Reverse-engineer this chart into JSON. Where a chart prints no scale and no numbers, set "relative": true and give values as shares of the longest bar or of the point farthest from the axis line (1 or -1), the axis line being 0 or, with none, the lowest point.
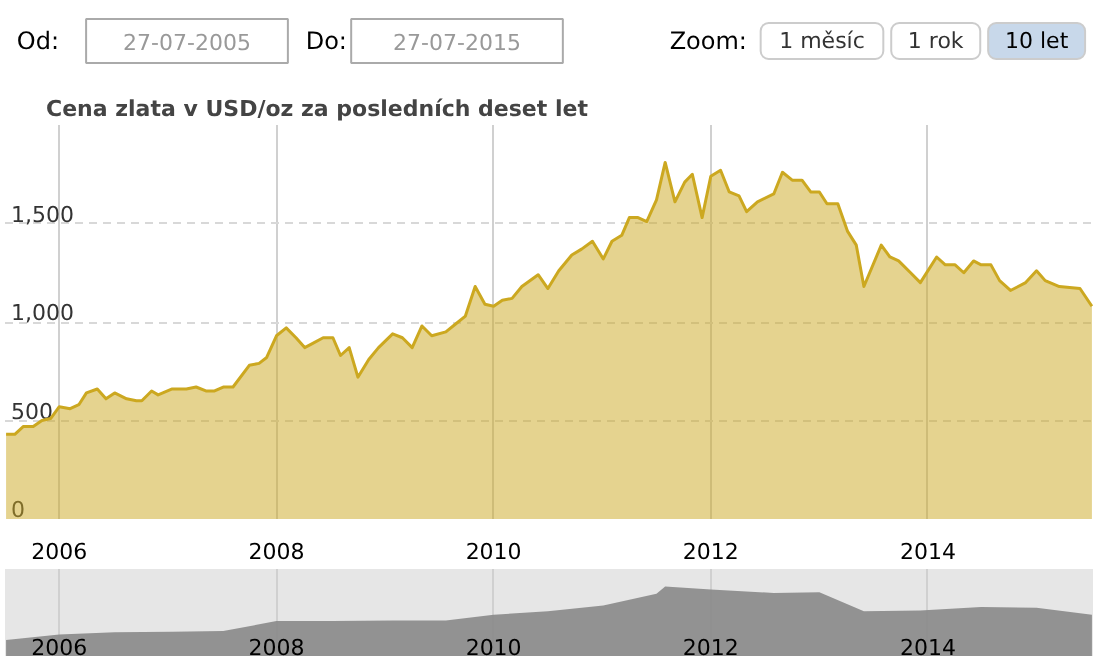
{
  "chart_data": [
    {
      "type": "area",
      "legend": "top left",
      "annotations": [
        "Od:",
        "27-07-2005",
        "Do:",
        "27-07-2015",
        "Zoom:",
        "1 měsíc",
        "1 rok",
        "10 let"
      ],
      "xlim": [
        2005.5,
        2015.52
      ],
      "xticks": [
        2006,
        2008,
        2010,
        2012,
        2014
      ],
      "ylim": [
        0,
        2000
      ],
      "yticks": [
        0,
        500,
        {
          "value": 1000,
          "label": "1,000"
        },
        {
          "value": 1500,
          "label": "1,500"
        }
      ],
      "grid": true,
      "x": [
        2005.51,
        2005.59,
        2005.67,
        2005.76,
        2005.84,
        2005.92,
        2006.0,
        2006.1,
        2006.18,
        2006.25,
        2006.35,
        2006.43,
        2006.51,
        2006.62,
        2006.71,
        2006.76,
        2006.85,
        2006.91,
        2007.04,
        2007.17,
        2007.26,
        2007.35,
        2007.43,
        2007.51,
        2007.6,
        2007.75,
        2007.84,
        2007.91,
        2008.0,
        2008.09,
        2008.18,
        2008.26,
        2008.33,
        2008.43,
        2008.52,
        2008.59,
        2008.67,
        2008.75,
        2008.85,
        2008.94,
        2009.07,
        2009.16,
        2009.25,
        2009.34,
        2009.43,
        2009.56,
        2009.65,
        2009.74,
        2009.83,
        2009.92,
        2010.0,
        2010.08,
        2010.17,
        2010.26,
        2010.41,
        2010.5,
        2010.6,
        2010.72,
        2010.81,
        2010.91,
        2011.01,
        2011.09,
        2011.18,
        2011.25,
        2011.33,
        2011.41,
        2011.5,
        2011.58,
        2011.67,
        2011.76,
        2011.83,
        2011.92,
        2012.0,
        2012.09,
        2012.17,
        2012.26,
        2012.33,
        2012.43,
        2012.58,
        2012.66,
        2012.75,
        2012.84,
        2012.92,
        2013.0,
        2013.07,
        2013.17,
        2013.26,
        2013.34,
        2013.41,
        2013.57,
        2013.65,
        2013.73,
        2013.84,
        2013.93,
        2014.08,
        2014.16,
        2014.25,
        2014.33,
        2014.42,
        2014.49,
        2014.58,
        2014.66,
        2014.76,
        2014.9,
        2015.0,
        2015.08,
        2015.21,
        2015.4,
        2015.51
      ],
      "series": [
        {
          "name": "Cena zlata v USD/oz za posledních deset let",
          "color": "#cca820",
          "values": [
            430,
            430,
            470,
            470,
            500,
            510,
            570,
            560,
            580,
            640,
            660,
            610,
            640,
            610,
            600,
            600,
            650,
            630,
            660,
            660,
            670,
            650,
            650,
            670,
            670,
            780,
            790,
            820,
            930,
            970,
            920,
            870,
            890,
            920,
            920,
            830,
            870,
            720,
            810,
            870,
            940,
            920,
            870,
            980,
            930,
            950,
            990,
            1030,
            1180,
            1090,
            1080,
            1110,
            1120,
            1180,
            1240,
            1170,
            1260,
            1340,
            1370,
            1410,
            1320,
            1410,
            1440,
            1530,
            1530,
            1510,
            1620,
            1810,
            1610,
            1710,
            1750,
            1530,
            1740,
            1770,
            1660,
            1640,
            1560,
            1610,
            1650,
            1760,
            1720,
            1720,
            1660,
            1660,
            1600,
            1600,
            1460,
            1390,
            1180,
            1390,
            1330,
            1310,
            1250,
            1200,
            1330,
            1290,
            1290,
            1250,
            1310,
            1290,
            1290,
            1210,
            1160,
            1200,
            1260,
            1210,
            1180,
            1170,
            1080
          ]
        }
      ]
    },
    {
      "type": "area",
      "relative": true,
      "grid": "x",
      "xlim": [
        2005.5,
        2015.52
      ],
      "xticks": [
        2006,
        2008,
        2010,
        2012,
        2014
      ],
      "x": [
        2005.51,
        2006.0,
        2006.51,
        2007.04,
        2007.51,
        2008.0,
        2008.52,
        2009.07,
        2009.56,
        2010.0,
        2010.5,
        2011.01,
        2011.5,
        2011.58,
        2012.0,
        2012.58,
        2013.0,
        2013.41,
        2013.93,
        2014.49,
        2015.0,
        2015.51
      ],
      "series": [
        {
          "color": "#888888",
          "values": [
            0.24,
            0.32,
            0.35,
            0.36,
            0.37,
            0.51,
            0.51,
            0.52,
            0.52,
            0.6,
            0.65,
            0.73,
            0.9,
            1,
            0.96,
            0.91,
            0.92,
            0.65,
            0.66,
            0.71,
            0.7,
            0.6
          ]
        }
      ]
    }
  ]
}
